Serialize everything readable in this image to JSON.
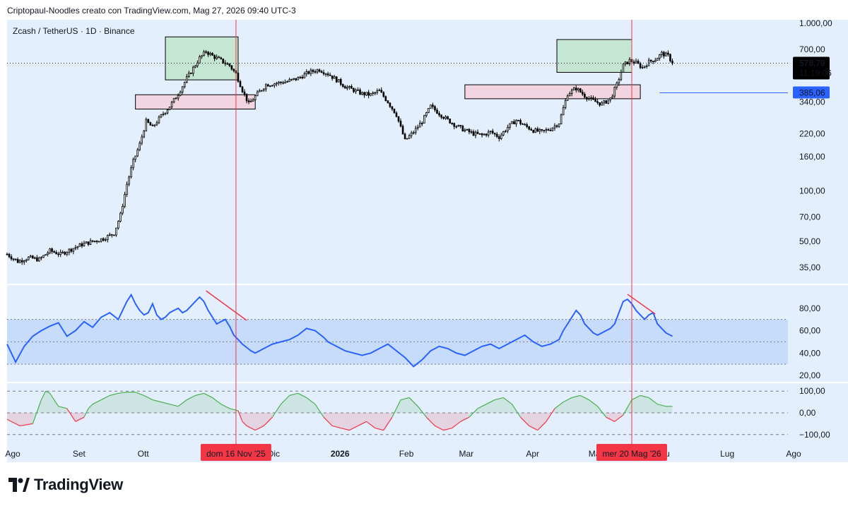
{
  "header": {
    "caption": "Criptopaul-Noodles creato con TradingView.com, Mag 27, 2026 09:40 UTC-3"
  },
  "brand": {
    "name": "TradingView",
    "icon": "tradingview-logo-icon"
  },
  "colors": {
    "background": "#e3effd",
    "candle": "#000000",
    "rsi_line": "#2962ff",
    "rsi_band": "#c7dcfb",
    "osc_positive": "#4caf50",
    "osc_negative": "#f23645",
    "marker_line": "#f23645",
    "supply_zone": "#c6e6d4",
    "demand_zone": "#f2d5e1",
    "divergence_line": "#f23645",
    "price_badge": "#000000",
    "level_badge": "#2962ff"
  },
  "chart_data": [
    {
      "type": "candlestick",
      "title": "Zcash / TetherUS · 1D · Binance",
      "scale": "log",
      "ylim": [
        28,
        1050
      ],
      "y_ticks": [
        {
          "value": 1000,
          "label": "1.000,00"
        },
        {
          "value": 700,
          "label": "700,00"
        },
        {
          "value": 340,
          "label": "340,00"
        },
        {
          "value": 220,
          "label": "220,00"
        },
        {
          "value": 160,
          "label": "160,00"
        },
        {
          "value": 100,
          "label": "100,00"
        },
        {
          "value": 70,
          "label": "70,00"
        },
        {
          "value": 50,
          "label": "50,00"
        },
        {
          "value": 35,
          "label": "35,00"
        }
      ],
      "x_ticks": [
        "Ago",
        "Set",
        "Ott",
        "Nov",
        "Dic",
        "2026",
        "Feb",
        "Mar",
        "Apr",
        "Mag",
        "Giu",
        "Lug",
        "Ago"
      ],
      "x_tick_days": [
        0,
        31,
        61,
        92,
        122,
        153,
        184,
        212,
        243,
        273,
        304,
        334,
        365
      ],
      "last_price": {
        "value": 578.79,
        "label": "578,79",
        "countdown": "11:19:06"
      },
      "level": {
        "value": 385.06,
        "label": "385,06"
      },
      "zones": [
        {
          "kind": "supply",
          "day_start": 74,
          "day_end": 108,
          "low": 460,
          "high": 830
        },
        {
          "kind": "demand",
          "day_start": 60,
          "day_end": 116,
          "low": 308,
          "high": 375
        },
        {
          "kind": "supply",
          "day_start": 257,
          "day_end": 292,
          "low": 510,
          "high": 800
        },
        {
          "kind": "demand",
          "day_start": 214,
          "day_end": 296,
          "low": 355,
          "high": 430
        }
      ],
      "markers": [
        {
          "day": 107,
          "label": "dom 16 Nov '25"
        },
        {
          "day": 292,
          "label": "mer 20 Mag '26"
        }
      ],
      "closes": [
        {
          "day": 0,
          "close": 42
        },
        {
          "day": 5,
          "close": 38
        },
        {
          "day": 10,
          "close": 40
        },
        {
          "day": 15,
          "close": 39
        },
        {
          "day": 20,
          "close": 44
        },
        {
          "day": 25,
          "close": 42
        },
        {
          "day": 30,
          "close": 45
        },
        {
          "day": 35,
          "close": 48
        },
        {
          "day": 40,
          "close": 50
        },
        {
          "day": 45,
          "close": 52
        },
        {
          "day": 50,
          "close": 56
        },
        {
          "day": 53,
          "close": 72
        },
        {
          "day": 56,
          "close": 110
        },
        {
          "day": 59,
          "close": 150
        },
        {
          "day": 62,
          "close": 190
        },
        {
          "day": 65,
          "close": 260
        },
        {
          "day": 68,
          "close": 240
        },
        {
          "day": 72,
          "close": 280
        },
        {
          "day": 76,
          "close": 320
        },
        {
          "day": 80,
          "close": 380
        },
        {
          "day": 84,
          "close": 470
        },
        {
          "day": 87,
          "close": 540
        },
        {
          "day": 90,
          "close": 620
        },
        {
          "day": 93,
          "close": 680
        },
        {
          "day": 96,
          "close": 640
        },
        {
          "day": 100,
          "close": 600
        },
        {
          "day": 104,
          "close": 560
        },
        {
          "day": 107,
          "close": 500
        },
        {
          "day": 110,
          "close": 400
        },
        {
          "day": 113,
          "close": 330
        },
        {
          "day": 117,
          "close": 380
        },
        {
          "day": 121,
          "close": 430
        },
        {
          "day": 126,
          "close": 440
        },
        {
          "day": 131,
          "close": 450
        },
        {
          "day": 136,
          "close": 470
        },
        {
          "day": 141,
          "close": 510
        },
        {
          "day": 146,
          "close": 530
        },
        {
          "day": 150,
          "close": 500
        },
        {
          "day": 154,
          "close": 460
        },
        {
          "day": 158,
          "close": 420
        },
        {
          "day": 162,
          "close": 400
        },
        {
          "day": 166,
          "close": 380
        },
        {
          "day": 170,
          "close": 375
        },
        {
          "day": 174,
          "close": 395
        },
        {
          "day": 178,
          "close": 340
        },
        {
          "day": 182,
          "close": 285
        },
        {
          "day": 186,
          "close": 200
        },
        {
          "day": 190,
          "close": 225
        },
        {
          "day": 194,
          "close": 260
        },
        {
          "day": 198,
          "close": 320
        },
        {
          "day": 202,
          "close": 290
        },
        {
          "day": 206,
          "close": 265
        },
        {
          "day": 210,
          "close": 245
        },
        {
          "day": 214,
          "close": 230
        },
        {
          "day": 218,
          "close": 220
        },
        {
          "day": 222,
          "close": 215
        },
        {
          "day": 226,
          "close": 225
        },
        {
          "day": 230,
          "close": 210
        },
        {
          "day": 234,
          "close": 240
        },
        {
          "day": 238,
          "close": 265
        },
        {
          "day": 242,
          "close": 245
        },
        {
          "day": 246,
          "close": 230
        },
        {
          "day": 250,
          "close": 225
        },
        {
          "day": 254,
          "close": 235
        },
        {
          "day": 258,
          "close": 255
        },
        {
          "day": 262,
          "close": 380
        },
        {
          "day": 266,
          "close": 410
        },
        {
          "day": 270,
          "close": 370
        },
        {
          "day": 274,
          "close": 345
        },
        {
          "day": 278,
          "close": 330
        },
        {
          "day": 282,
          "close": 355
        },
        {
          "day": 285,
          "close": 430
        },
        {
          "day": 288,
          "close": 560
        },
        {
          "day": 291,
          "close": 600
        },
        {
          "day": 294,
          "close": 580
        },
        {
          "day": 297,
          "close": 545
        },
        {
          "day": 300,
          "close": 590
        },
        {
          "day": 303,
          "close": 610
        },
        {
          "day": 306,
          "close": 660
        },
        {
          "day": 309,
          "close": 640
        },
        {
          "day": 311,
          "close": 578.79
        }
      ]
    },
    {
      "type": "line",
      "name": "rsi",
      "ylim": [
        15,
        100
      ],
      "band": [
        30,
        70
      ],
      "midline": 50,
      "y_ticks": [
        {
          "value": 80,
          "label": "80,00"
        },
        {
          "value": 60,
          "label": "60,00"
        },
        {
          "value": 40,
          "label": "40,00"
        },
        {
          "value": 20,
          "label": "20,00"
        }
      ],
      "x": [
        0,
        4,
        8,
        12,
        16,
        20,
        24,
        28,
        32,
        36,
        40,
        44,
        48,
        52,
        56,
        58,
        60,
        62,
        64,
        66,
        68,
        70,
        72,
        74,
        76,
        78,
        80,
        82,
        84,
        86,
        88,
        90,
        92,
        94,
        96,
        98,
        100,
        102,
        104,
        106,
        108,
        110,
        112,
        114,
        116,
        118,
        120,
        124,
        128,
        132,
        136,
        140,
        144,
        148,
        150,
        152,
        154,
        156,
        158,
        162,
        166,
        170,
        174,
        178,
        182,
        186,
        190,
        194,
        198,
        202,
        206,
        210,
        214,
        218,
        222,
        226,
        230,
        234,
        238,
        242,
        246,
        250,
        254,
        258,
        260,
        262,
        264,
        266,
        268,
        270,
        272,
        274,
        276,
        278,
        280,
        282,
        284,
        286,
        288,
        290,
        292,
        294,
        296,
        298,
        300,
        302,
        304,
        306,
        308,
        310,
        311
      ],
      "y": [
        48,
        32,
        46,
        55,
        60,
        64,
        67,
        55,
        60,
        68,
        63,
        72,
        76,
        70,
        86,
        92,
        84,
        78,
        74,
        76,
        84,
        74,
        70,
        72,
        76,
        78,
        80,
        76,
        78,
        82,
        86,
        90,
        86,
        78,
        72,
        66,
        68,
        70,
        64,
        56,
        52,
        48,
        45,
        42,
        40,
        42,
        44,
        48,
        50,
        52,
        56,
        62,
        60,
        54,
        50,
        48,
        46,
        44,
        42,
        40,
        38,
        40,
        44,
        48,
        42,
        36,
        28,
        34,
        42,
        46,
        44,
        40,
        38,
        42,
        46,
        48,
        44,
        48,
        52,
        56,
        50,
        46,
        48,
        52,
        60,
        66,
        72,
        78,
        74,
        66,
        62,
        58,
        56,
        58,
        60,
        62,
        66,
        76,
        86,
        88,
        84,
        78,
        74,
        70,
        74,
        76,
        66,
        62,
        58,
        56,
        55
      ]
    },
    {
      "type": "area",
      "name": "oscillator",
      "ylim": [
        -130,
        130
      ],
      "y_ticks": [
        {
          "value": 100,
          "label": "100,00"
        },
        {
          "value": 0,
          "label": "0,00"
        },
        {
          "value": -100,
          "label": "−100,00"
        }
      ],
      "x": [
        0,
        6,
        12,
        16,
        18,
        20,
        24,
        28,
        32,
        36,
        38,
        40,
        44,
        48,
        52,
        56,
        60,
        64,
        68,
        72,
        76,
        80,
        84,
        88,
        92,
        96,
        100,
        104,
        108,
        110,
        112,
        116,
        120,
        124,
        128,
        132,
        136,
        140,
        144,
        148,
        152,
        156,
        160,
        164,
        168,
        172,
        176,
        180,
        184,
        188,
        192,
        196,
        200,
        204,
        208,
        212,
        216,
        220,
        224,
        228,
        232,
        236,
        240,
        244,
        248,
        252,
        256,
        260,
        264,
        268,
        272,
        276,
        280,
        284,
        288,
        292,
        296,
        300,
        304,
        308,
        311
      ],
      "y": [
        -30,
        -60,
        -50,
        60,
        100,
        90,
        30,
        20,
        -40,
        -20,
        20,
        40,
        60,
        80,
        90,
        95,
        95,
        80,
        60,
        50,
        40,
        30,
        60,
        80,
        90,
        70,
        40,
        20,
        10,
        -40,
        -60,
        -80,
        -60,
        -20,
        40,
        80,
        90,
        70,
        40,
        -20,
        -60,
        -70,
        -80,
        -60,
        -40,
        -70,
        -80,
        -20,
        60,
        70,
        30,
        -20,
        -60,
        -80,
        -70,
        -40,
        -20,
        20,
        40,
        60,
        70,
        40,
        -20,
        -60,
        -80,
        -40,
        20,
        50,
        70,
        80,
        60,
        30,
        -20,
        -40,
        -10,
        60,
        80,
        70,
        40,
        30,
        30
      ]
    }
  ]
}
